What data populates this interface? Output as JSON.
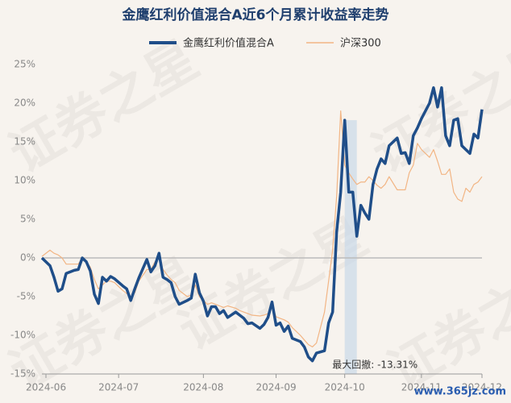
{
  "chart_data": {
    "type": "line",
    "title": "金鹰红利价值混合A近6个月累计收益率走势",
    "x": [
      0,
      2,
      3,
      4,
      5,
      6,
      8,
      9,
      10,
      11,
      12,
      13,
      14,
      15,
      16,
      17,
      18,
      20,
      21,
      22,
      23,
      24,
      26,
      27,
      28,
      29,
      30,
      31,
      32,
      33,
      34,
      36,
      37,
      38,
      39,
      40,
      41,
      42,
      43,
      44,
      45,
      46,
      48,
      49,
      50,
      51,
      52,
      54,
      55,
      56,
      57,
      58,
      59,
      60,
      61,
      62,
      64,
      65,
      66,
      67,
      68,
      70,
      71,
      72,
      73,
      74,
      75,
      76,
      77,
      78,
      79,
      80,
      81,
      82,
      83,
      84,
      85,
      86,
      88,
      89,
      90,
      91,
      92,
      93,
      94,
      96,
      97,
      98,
      99,
      100,
      101,
      102,
      103,
      104,
      105,
      106,
      107,
      108,
      109
    ],
    "series": [
      {
        "name": "金鹰红利价值混合A",
        "color": "#1f4e89",
        "values": [
          0,
          -1,
          -2.5,
          -4.3,
          -4,
          -2,
          -1.6,
          -1.5,
          0,
          -0.5,
          -1.7,
          -4.7,
          -5.9,
          -2.5,
          -3,
          -2.4,
          -2.7,
          -3.6,
          -4,
          -5.5,
          -4,
          -2.6,
          -0.2,
          -1.8,
          -1,
          0.6,
          -2.5,
          -2.8,
          -3.2,
          -5,
          -6,
          -5.5,
          -5.2,
          -2.1,
          -4.5,
          -5.6,
          -7.5,
          -6.3,
          -6.3,
          -7.2,
          -6.8,
          -7.7,
          -7,
          -7.4,
          -7.8,
          -8.5,
          -8.4,
          -9.1,
          -8.6,
          -7.7,
          -5.7,
          -8.7,
          -8.4,
          -9.5,
          -8.8,
          -10.4,
          -10.8,
          -11.5,
          -12.8,
          -13.3,
          -12.3,
          -12,
          -8.4,
          -7,
          3.4,
          8.5,
          17.8,
          8.5,
          8.5,
          2.8,
          6.8,
          5.8,
          5,
          9.5,
          11.5,
          12.8,
          12.2,
          14.5,
          15.5,
          13.5,
          13.6,
          12.2,
          15.8,
          16.8,
          18,
          20,
          22,
          19.5,
          22,
          15.8,
          14.5,
          17.8,
          18,
          14.5,
          14,
          13.5,
          16,
          15.5,
          19.2
        ]
      },
      {
        "name": "沪深300",
        "color": "#f2b584",
        "values": [
          0.2,
          1,
          0.6,
          0.4,
          0,
          -0.8,
          -0.8,
          -0.8,
          0,
          -0.5,
          -1.2,
          -2.8,
          -4,
          -3.5,
          -3,
          -3,
          -3.2,
          -4.2,
          -4.6,
          -5,
          -4.5,
          -3,
          -1.5,
          -1.5,
          -0.5,
          0,
          -1.5,
          -2.2,
          -2.8,
          -3.2,
          -4.2,
          -5,
          -4.8,
          -3.5,
          -5,
          -5.5,
          -6,
          -5.8,
          -6,
          -6.2,
          -6.4,
          -6.2,
          -6.5,
          -6.8,
          -7,
          -7.2,
          -7.4,
          -7.5,
          -7.4,
          -7.2,
          -6,
          -7.6,
          -7.8,
          -8,
          -8.3,
          -9,
          -10,
          -10.6,
          -11.2,
          -11.5,
          -11,
          -7,
          -3,
          1,
          8,
          19,
          12,
          11,
          10.2,
          9.5,
          9.8,
          9.8,
          10.5,
          10,
          9.4,
          9,
          9.5,
          10.5,
          8.8,
          8.8,
          8.8,
          11,
          12,
          14.8,
          14,
          13,
          14,
          12.5,
          10.8,
          10.8,
          11.5,
          8.5,
          7.6,
          7.3,
          9,
          8.5,
          9.5,
          9.8,
          10.5
        ]
      }
    ],
    "xlim": [
      0,
      109
    ],
    "xticks": [
      {
        "value": 1,
        "label": "2024-06"
      },
      {
        "value": 19,
        "label": "2024-07"
      },
      {
        "value": 40,
        "label": "2024-08"
      },
      {
        "value": 58,
        "label": "2024-09"
      },
      {
        "value": 75,
        "label": "2024-10"
      },
      {
        "value": 94,
        "label": "2024-11"
      },
      {
        "value": 109,
        "label": "2024-12"
      }
    ],
    "ylim": [
      -15,
      25
    ],
    "yticks": [
      {
        "value": -15,
        "label": "-15%"
      },
      {
        "value": -10,
        "label": "-10%"
      },
      {
        "value": -5,
        "label": "-5%"
      },
      {
        "value": 0,
        "label": "0%"
      },
      {
        "value": 5,
        "label": "5%"
      },
      {
        "value": 10,
        "label": "10%"
      },
      {
        "value": 15,
        "label": "15%"
      },
      {
        "value": 20,
        "label": "20%"
      },
      {
        "value": 25,
        "label": "25%"
      }
    ],
    "grid": false,
    "annotation": "最大回撤: -13.31%",
    "watermark": "证券之星",
    "site_watermark": "www.365jz.com"
  }
}
